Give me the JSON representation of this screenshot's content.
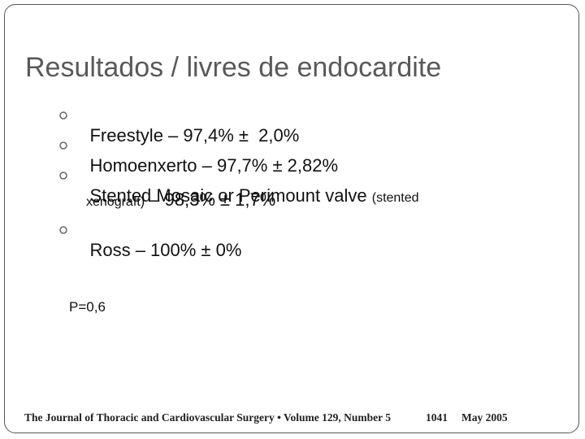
{
  "header": {
    "title": "Resultados / livres de endocardite"
  },
  "bullets": [
    [
      "Freestyle – 97,4% ±  2,0%"
    ],
    [
      "Homoenxerto – 97,7% ± 2,82%"
    ],
    [
      "Stented Mosaic or Perimount valve ",
      "(stented",
      "xenograft)",
      " – 98,3% ± 1,7%"
    ],
    [
      "Ross – 100% ± 0%"
    ]
  ],
  "p_value": "P=0,6",
  "footer": {
    "citation": "The Journal of Thoracic and Cardiovascular Surgery • Volume 129, Number 5",
    "page": "1041",
    "date": "May 2005"
  }
}
